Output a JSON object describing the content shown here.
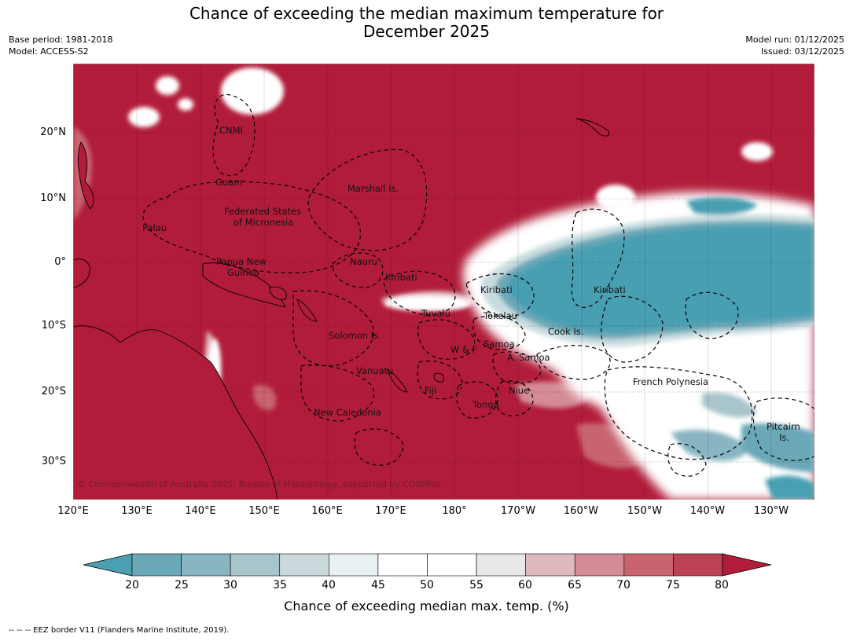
{
  "title": {
    "line1": "Chance of exceeding the median maximum temperature for",
    "line2": "December 2025"
  },
  "meta": {
    "base_period": "Base period: 1981-2018",
    "model": "Model: ACCESS-S2",
    "model_run": "Model run: 01/12/2025",
    "issued": "Issued: 03/12/2025"
  },
  "map": {
    "lat_labels": [
      "20°N",
      "10°N",
      "0°",
      "10°S",
      "20°S",
      "30°S"
    ],
    "lon_labels": [
      "120°E",
      "130°E",
      "140°E",
      "150°E",
      "160°E",
      "170°E",
      "180°",
      "170°W",
      "160°W",
      "150°W",
      "140°W",
      "130°W"
    ],
    "regions": {
      "cnmi": "CNMI",
      "guam": "Guam",
      "marshall": "Marshall Is.",
      "fsm1": "Federated States",
      "fsm2": "of Micronesia",
      "palau": "Palau",
      "png1": "Papua New",
      "png2": "Guinea",
      "nauru": "Nauru",
      "kiribati_w": "Kiribati",
      "kiribati_c": "Kiribati",
      "kiribati_e": "Kiribati",
      "tuvalu": "Tuvalu",
      "tokelau": "Tokelau",
      "cook": "Cook Is.",
      "solomon": "Solomon Is.",
      "wf": "W & F",
      "samoa": "Samoa",
      "asamoa": "A. Samoa",
      "vanuatu": "Vanuatu",
      "fiji": "Fiji",
      "niue": "Niue",
      "tonga": "Tonga",
      "newcal": "New Caledonia",
      "frpoly": "French Polynesia",
      "pitcairn1": "Pitcairn",
      "pitcairn2": "Is."
    },
    "copyright": "© Commonwealth of Australia 2025, Bureau of Meteorology, supported by COSPPac",
    "colors": {
      "high": "#b11c3a",
      "low": "#4aa0b3",
      "neutral": "#ffffff"
    }
  },
  "colorbar": {
    "ticks": [
      "20",
      "25",
      "30",
      "35",
      "40",
      "45",
      "50",
      "55",
      "60",
      "65",
      "70",
      "75",
      "80"
    ],
    "colors": [
      "#4a9fb2",
      "#6ba8b7",
      "#88b5c1",
      "#a8c5cc",
      "#ccd9dc",
      "#eaf1f2",
      "#ffffff",
      "#ffffff",
      "#e8e8e8",
      "#e0b9be",
      "#d48b95",
      "#c8636f",
      "#bb4254",
      "#b11c3a"
    ],
    "label": "Chance of exceeding median max. temp. (%)"
  },
  "footnote": "--  --  -- EEZ border V11 (Flanders Marine Institute, 2019)."
}
